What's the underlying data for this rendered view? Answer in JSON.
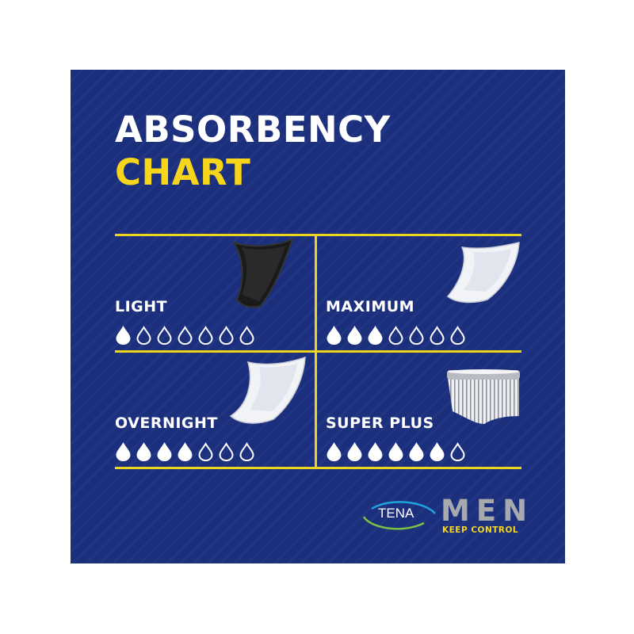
{
  "title": {
    "line1": "ABSORBENCY",
    "line2": "CHART"
  },
  "colors": {
    "background": "#1c2f7c",
    "accent": "#f6d51a",
    "drop": "#ffffff",
    "men_text": "#a7a9ad"
  },
  "levels": [
    {
      "label": "LIGHT",
      "filled": 1,
      "total": 7,
      "product": "black-pad-icon"
    },
    {
      "label": "MAXIMUM",
      "filled": 3,
      "total": 7,
      "product": "white-pad-icon"
    },
    {
      "label": "OVERNIGHT",
      "filled": 4,
      "total": 7,
      "product": "white-pad-icon"
    },
    {
      "label": "SUPER PLUS",
      "filled": 6,
      "total": 7,
      "product": "protective-underwear-icon"
    }
  ],
  "brand": {
    "logo": "TENA",
    "line": "MEN",
    "tagline": "KEEP CONTROL"
  }
}
